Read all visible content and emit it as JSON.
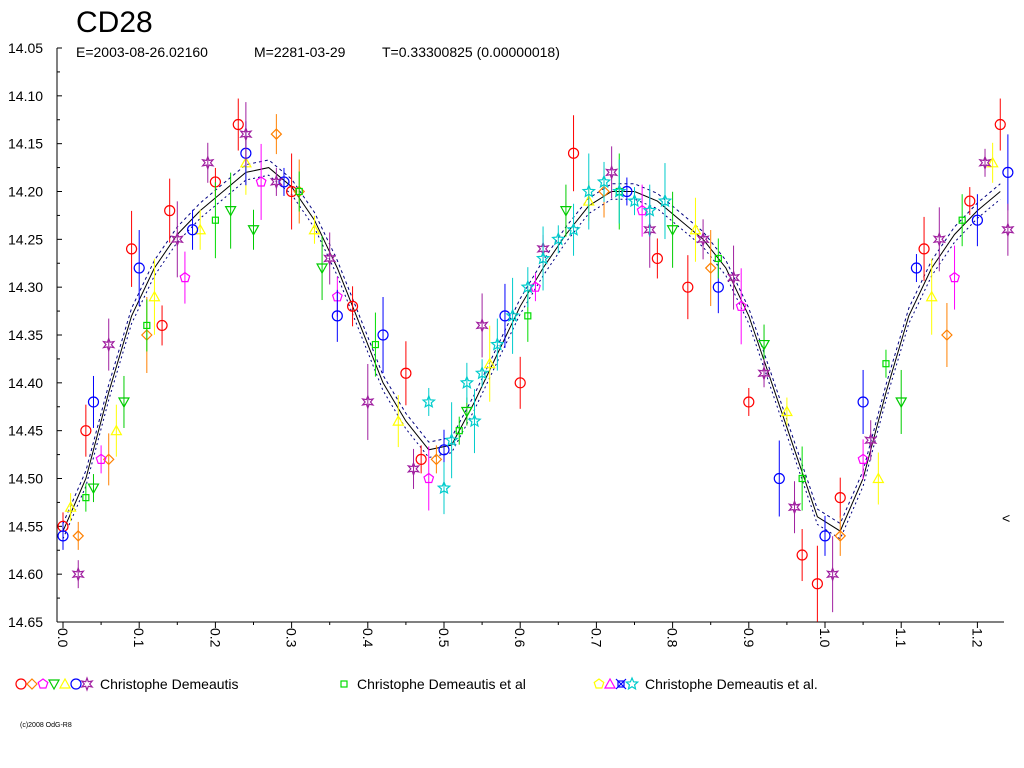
{
  "chart_data": {
    "type": "scatter",
    "title": "CD28",
    "subtitle": {
      "epoch": "E=2003-08-26.02160",
      "max": "M=2281-03-29",
      "period": "T=0.33300825 (0.00000018)"
    },
    "xlabel": "",
    "ylabel": "",
    "xlim": [
      0.0,
      1.25
    ],
    "ylim": [
      14.05,
      14.65
    ],
    "y_inverted": true,
    "grid": false,
    "x_ticks": [
      "0.0",
      "0.1",
      "0.2",
      "0.3",
      "0.4",
      "0.5",
      "0.6",
      "0.7",
      "0.8",
      "0.9",
      "1.0",
      "1.1",
      "1.2"
    ],
    "y_ticks": [
      "14.05",
      "14.10",
      "14.15",
      "14.20",
      "14.25",
      "14.30",
      "14.35",
      "14.40",
      "14.45",
      "14.50",
      "14.55",
      "14.60",
      "14.65"
    ],
    "right_marker": "<",
    "fit_curve_x": [
      0.0,
      0.03,
      0.06,
      0.09,
      0.12,
      0.15,
      0.18,
      0.21,
      0.24,
      0.27,
      0.3,
      0.33,
      0.36,
      0.39,
      0.42,
      0.45,
      0.48,
      0.51,
      0.54,
      0.57,
      0.6,
      0.63,
      0.66,
      0.69,
      0.72,
      0.75,
      0.78,
      0.81,
      0.84,
      0.87,
      0.9,
      0.93,
      0.96,
      0.99,
      1.02,
      1.05,
      1.08,
      1.11,
      1.14,
      1.17,
      1.2,
      1.23
    ],
    "fit_curve_y": [
      14.555,
      14.5,
      14.41,
      14.33,
      14.28,
      14.245,
      14.22,
      14.2,
      14.18,
      14.175,
      14.195,
      14.23,
      14.28,
      14.34,
      14.4,
      14.44,
      14.47,
      14.465,
      14.42,
      14.37,
      14.32,
      14.28,
      14.245,
      14.215,
      14.2,
      14.2,
      14.21,
      14.23,
      14.25,
      14.28,
      14.33,
      14.4,
      14.47,
      14.54,
      14.555,
      14.5,
      14.41,
      14.33,
      14.28,
      14.245,
      14.22,
      14.2
    ],
    "series": [
      {
        "name": "",
        "color": "#ff0000",
        "marker": "circle",
        "x": [
          0.0,
          0.03,
          0.09,
          0.13,
          0.14,
          0.2,
          0.23,
          0.3,
          0.38,
          0.45,
          0.47,
          0.6,
          0.67,
          0.78,
          0.82,
          0.9,
          0.97,
          0.99,
          1.02,
          1.13,
          1.19,
          1.23
        ],
        "y": [
          14.55,
          14.45,
          14.26,
          14.34,
          14.22,
          14.19,
          14.13,
          14.2,
          14.32,
          14.39,
          14.48,
          14.4,
          14.16,
          14.27,
          14.3,
          14.42,
          14.58,
          14.61,
          14.52,
          14.26,
          14.21,
          14.13
        ]
      },
      {
        "name": "",
        "color": "#ff8000",
        "marker": "diamond",
        "x": [
          0.02,
          0.06,
          0.11,
          0.28,
          0.31,
          0.49,
          0.71,
          0.85,
          1.02,
          1.16
        ],
        "y": [
          14.56,
          14.48,
          14.35,
          14.14,
          14.2,
          14.48,
          14.2,
          14.28,
          14.56,
          14.35
        ]
      },
      {
        "name": "",
        "color": "#ff00ff",
        "marker": "pentagon",
        "x": [
          0.05,
          0.16,
          0.26,
          0.36,
          0.48,
          0.62,
          0.76,
          0.89,
          1.05,
          1.17
        ],
        "y": [
          14.48,
          14.29,
          14.19,
          14.31,
          14.5,
          14.3,
          14.22,
          14.32,
          14.48,
          14.29
        ]
      },
      {
        "name": "",
        "color": "#00cc00",
        "marker": "triangle-down",
        "x": [
          0.04,
          0.08,
          0.22,
          0.25,
          0.34,
          0.53,
          0.66,
          0.8,
          0.92,
          1.1
        ],
        "y": [
          14.51,
          14.42,
          14.22,
          14.24,
          14.28,
          14.43,
          14.22,
          14.24,
          14.36,
          14.42
        ]
      },
      {
        "name": "",
        "color": "#ffff00",
        "marker": "triangle",
        "x": [
          0.01,
          0.07,
          0.12,
          0.18,
          0.24,
          0.33,
          0.44,
          0.56,
          0.69,
          0.83,
          0.95,
          1.07,
          1.14,
          1.22
        ],
        "y": [
          14.53,
          14.45,
          14.31,
          14.24,
          14.17,
          14.24,
          14.44,
          14.38,
          14.21,
          14.24,
          14.43,
          14.5,
          14.31,
          14.17
        ]
      },
      {
        "name": "",
        "color": "#0000ff",
        "marker": "circle",
        "x": [
          0.0,
          0.04,
          0.1,
          0.17,
          0.24,
          0.29,
          0.36,
          0.42,
          0.5,
          0.58,
          0.74,
          0.86,
          0.94,
          1.0,
          1.05,
          1.12,
          1.2,
          1.24
        ],
        "y": [
          14.56,
          14.42,
          14.28,
          14.24,
          14.16,
          14.19,
          14.33,
          14.35,
          14.47,
          14.33,
          14.2,
          14.3,
          14.5,
          14.56,
          14.42,
          14.28,
          14.23,
          14.18
        ]
      },
      {
        "name": "",
        "color": "#a020a0",
        "marker": "star-of-david",
        "x": [
          0.02,
          0.06,
          0.15,
          0.19,
          0.24,
          0.28,
          0.35,
          0.4,
          0.46,
          0.55,
          0.63,
          0.72,
          0.77,
          0.84,
          0.88,
          0.92,
          0.96,
          1.01,
          1.06,
          1.15,
          1.21,
          1.24
        ],
        "y": [
          14.6,
          14.36,
          14.25,
          14.17,
          14.14,
          14.19,
          14.27,
          14.42,
          14.49,
          14.34,
          14.26,
          14.18,
          14.24,
          14.25,
          14.29,
          14.39,
          14.53,
          14.6,
          14.46,
          14.25,
          14.17,
          14.24
        ]
      },
      {
        "name": "",
        "color": "#00dd00",
        "marker": "square",
        "x": [
          0.03,
          0.11,
          0.2,
          0.31,
          0.41,
          0.52,
          0.61,
          0.73,
          0.86,
          0.97,
          1.08,
          1.18
        ],
        "y": [
          14.52,
          14.34,
          14.23,
          14.2,
          14.36,
          14.45,
          14.33,
          14.2,
          14.27,
          14.5,
          14.38,
          14.23
        ]
      },
      {
        "name": "",
        "color": "#00cccc",
        "marker": "star",
        "x": [
          0.48,
          0.5,
          0.51,
          0.53,
          0.54,
          0.55,
          0.57,
          0.59,
          0.61,
          0.63,
          0.65,
          0.67,
          0.69,
          0.71,
          0.73,
          0.75,
          0.77,
          0.79
        ],
        "y": [
          14.42,
          14.51,
          14.46,
          14.4,
          14.44,
          14.39,
          14.36,
          14.33,
          14.3,
          14.27,
          14.25,
          14.24,
          14.2,
          14.19,
          14.2,
          14.21,
          14.22,
          14.21
        ]
      }
    ],
    "legend": {
      "placement": "bottom",
      "groups": [
        {
          "label": "Christophe Demeautis",
          "symbols": [
            "circle:#ff0000",
            "diamond:#ff8000",
            "pentagon:#ff00ff",
            "triangle-down:#00cc00",
            "triangle:#ffff00",
            "circle:#0000ff",
            "star-of-david:#a020a0"
          ]
        },
        {
          "label": "Christophe Demeautis et al",
          "symbols": [
            "square:#00dd00"
          ]
        },
        {
          "label": "Christophe Demeautis et al.",
          "symbols": [
            "pentagon:#ffff00",
            "triangle:#ff00ff",
            "cross-square:#0000ff",
            "star:#00cccc"
          ]
        }
      ]
    },
    "copyright": "(c)2008 OdG-R8"
  }
}
